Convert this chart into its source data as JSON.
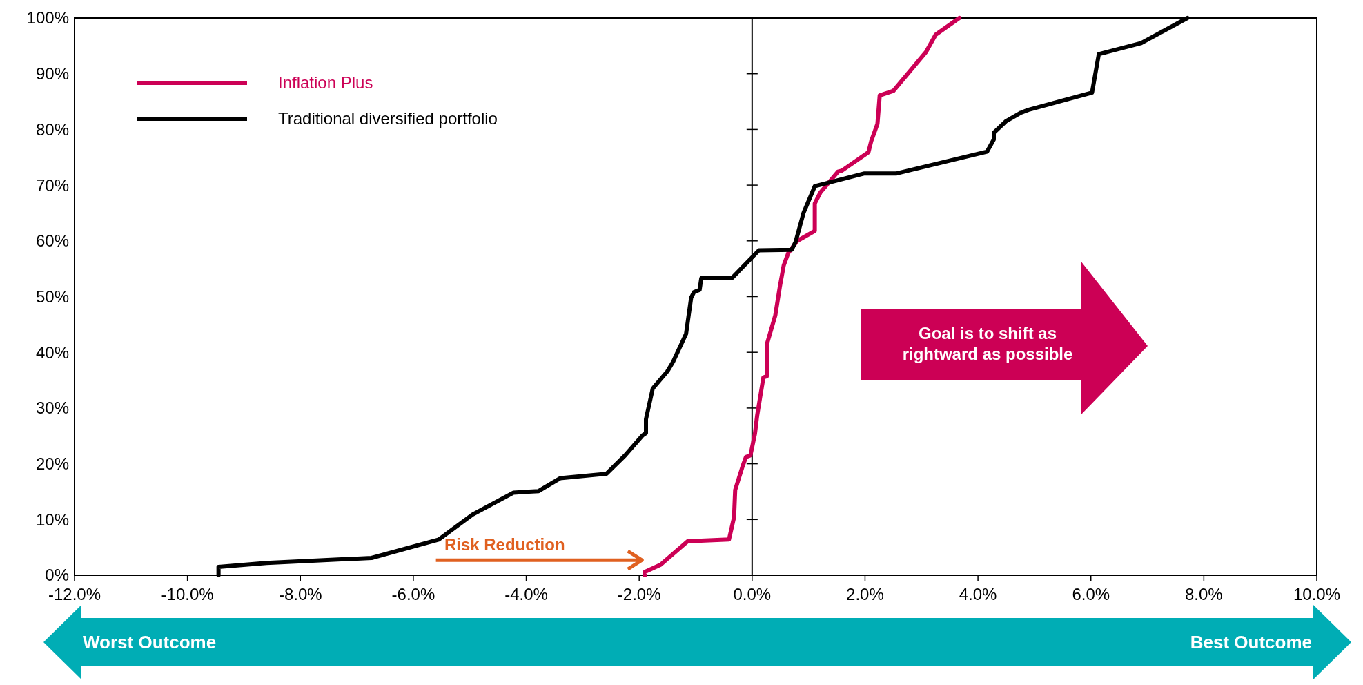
{
  "chart_data": {
    "type": "line",
    "xlim": [
      -12,
      10
    ],
    "ylim": [
      0,
      100
    ],
    "xticks": [
      {
        "value": -12,
        "label": "-12.0%"
      },
      {
        "value": -10,
        "label": "-10.0%"
      },
      {
        "value": -8,
        "label": "-8.0%"
      },
      {
        "value": -6,
        "label": "-6.0%"
      },
      {
        "value": -4,
        "label": "-4.0%"
      },
      {
        "value": -2,
        "label": "-2.0%"
      },
      {
        "value": 0,
        "label": "0.0%"
      },
      {
        "value": 2,
        "label": "2.0%"
      },
      {
        "value": 4,
        "label": "4.0%"
      },
      {
        "value": 6,
        "label": "6.0%"
      },
      {
        "value": 8,
        "label": "8.0%"
      },
      {
        "value": 10,
        "label": "10.0%"
      }
    ],
    "yticks": [
      {
        "value": 0,
        "label": "0%"
      },
      {
        "value": 10,
        "label": "10%"
      },
      {
        "value": 20,
        "label": "20%"
      },
      {
        "value": 30,
        "label": "30%"
      },
      {
        "value": 40,
        "label": "40%"
      },
      {
        "value": 50,
        "label": "50%"
      },
      {
        "value": 60,
        "label": "60%"
      },
      {
        "value": 70,
        "label": "70%"
      },
      {
        "value": 80,
        "label": "80%"
      },
      {
        "value": 90,
        "label": "90%"
      },
      {
        "value": 100,
        "label": "100%"
      }
    ],
    "grid": false,
    "ref_lines": [
      {
        "axis": "x",
        "value": 0,
        "color": "#000000"
      }
    ],
    "legend": "top left",
    "marker": "none",
    "line_style": "solid",
    "series": [
      {
        "name": "Inflation Plus",
        "color": "#cc0055",
        "x": [
          -1.9,
          -1.9,
          -1.62,
          -1.14,
          -0.41,
          -0.32,
          -0.3,
          -0.17,
          -0.11,
          -0.03,
          0.05,
          0.09,
          0.14,
          0.2,
          0.26,
          0.26,
          0.41,
          0.49,
          0.56,
          0.64,
          0.8,
          1.11,
          1.11,
          1.21,
          1.52,
          1.59,
          2.06,
          2.11,
          2.22,
          2.26,
          2.5,
          3.08,
          3.25,
          3.67
        ],
        "values": [
          0,
          0.6,
          1.9,
          6.1,
          6.4,
          10.4,
          15.3,
          19.5,
          21.2,
          21.5,
          25.4,
          28.7,
          31.8,
          35.5,
          35.7,
          41.4,
          46.6,
          51.7,
          55.6,
          57.8,
          60,
          61.8,
          66.7,
          68.7,
          72.4,
          72.6,
          75.9,
          77.9,
          81,
          86.1,
          86.9,
          93.9,
          97,
          100
        ]
      },
      {
        "name": "Traditional diversified portfolio",
        "color": "#000000",
        "x": [
          -9.45,
          -9.45,
          -8.6,
          -6.74,
          -5.55,
          -4.95,
          -4.23,
          -3.78,
          -3.7,
          -3.4,
          -2.58,
          -2.25,
          -1.94,
          -1.88,
          -1.88,
          -1.76,
          -1.5,
          -1.4,
          -1.17,
          -1.08,
          -1.03,
          -0.93,
          -0.9,
          -0.35,
          0.12,
          0.7,
          0.77,
          0.91,
          1.11,
          1.99,
          2.56,
          4.16,
          4.28,
          4.28,
          4.5,
          4.76,
          4.89,
          6.02,
          6.14,
          6.89,
          7.71
        ],
        "values": [
          0,
          1.5,
          2.2,
          3.1,
          6.4,
          10.9,
          14.8,
          15.1,
          15.6,
          17.4,
          18.2,
          21.5,
          25.1,
          25.5,
          28,
          33.5,
          36.6,
          38.3,
          43.3,
          49.8,
          50.8,
          51.2,
          53.3,
          53.4,
          58.3,
          58.4,
          59.8,
          65,
          69.8,
          72.1,
          72.1,
          76,
          78.2,
          79.4,
          81.5,
          83,
          83.5,
          86.6,
          93.5,
          95.5,
          100
        ]
      }
    ],
    "annotations": [
      "Risk Reduction",
      "Goal is to shift as rightward as possible",
      "Worst Outcome",
      "Best Outcome"
    ]
  }
}
